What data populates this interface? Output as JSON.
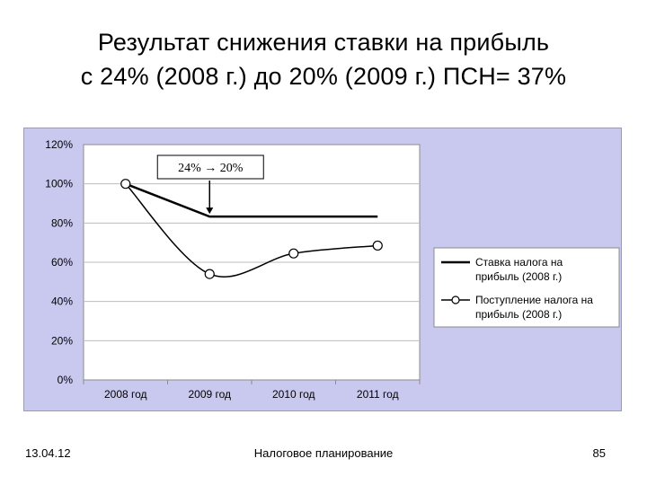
{
  "slide": {
    "title_line1": "Результат снижения ставки на прибыль",
    "title_line2": "с 24% (2008 г.) до 20% (2009 г.) ПСН= 37%",
    "footer_date": "13.04.12",
    "footer_center": "Налоговое планирование",
    "page_number": "85"
  },
  "chart_data": {
    "type": "line",
    "categories": [
      "2008 год",
      "2009 год",
      "2010 год",
      "2011 год"
    ],
    "ylim": [
      0,
      1.2
    ],
    "yticks": [
      {
        "value": 0,
        "label": "0%"
      },
      {
        "value": 0.2,
        "label": "20%"
      },
      {
        "value": 0.4,
        "label": "40%"
      },
      {
        "value": 0.6,
        "label": "60%"
      },
      {
        "value": 0.8,
        "label": "80%"
      },
      {
        "value": 1.0,
        "label": "100%"
      },
      {
        "value": 1.2,
        "label": "120%"
      }
    ],
    "grid": true,
    "legend_position": "right",
    "series": [
      {
        "name": "Ставка налога на прибыль (2008 г.)",
        "values": [
          1.0,
          0.833,
          0.833,
          0.833
        ],
        "color": "#000000",
        "markers": false,
        "smooth": false
      },
      {
        "name": "Поступление налога на прибыль (2008 г.)",
        "values": [
          1.0,
          0.54,
          0.645,
          0.685
        ],
        "color": "#000000",
        "markers": true,
        "smooth": true
      }
    ],
    "annotation": {
      "text": "24% → 20%",
      "category_index": 1
    }
  }
}
